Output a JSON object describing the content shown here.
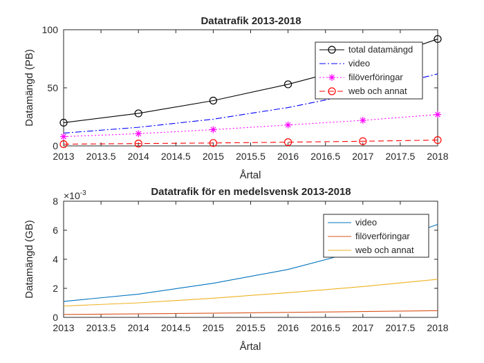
{
  "chart_data": [
    {
      "type": "line",
      "title": "Datatrafik 2013-2018",
      "xlabel": "Årtal",
      "ylabel": "Datamängd (PB)",
      "x": [
        2013,
        2014,
        2015,
        2016,
        2017,
        2018
      ],
      "xlim": [
        2013,
        2018
      ],
      "ylim": [
        0,
        100
      ],
      "xticks": [
        "2013",
        "2013.5",
        "2014",
        "2014.5",
        "2015",
        "2015.5",
        "2016",
        "2016.5",
        "2017",
        "2017.5",
        "2018"
      ],
      "yticks": [
        "0",
        "50",
        "100"
      ],
      "legend_position": "top-right",
      "series": [
        {
          "name": "total datamängd",
          "values": [
            20,
            28,
            39,
            53,
            70,
            92
          ],
          "color": "#000000",
          "line": "solid",
          "marker": "circle"
        },
        {
          "name": "video",
          "values": [
            11,
            16,
            23,
            33,
            46,
            62
          ],
          "color": "#0000ff",
          "line": "dashdot",
          "marker": "none"
        },
        {
          "name": "filöverföringar",
          "values": [
            8,
            10.5,
            14,
            18,
            22,
            27
          ],
          "color": "#ff00ff",
          "line": "dotted",
          "marker": "asterisk"
        },
        {
          "name": "web och annat",
          "values": [
            1.5,
            2,
            2.5,
            3.2,
            4,
            5
          ],
          "color": "#ff0000",
          "line": "dashed",
          "marker": "circle"
        }
      ]
    },
    {
      "type": "line",
      "title": "Datatrafik för en medelsvensk 2013-2018",
      "xlabel": "Årtal",
      "ylabel": "Datamängd (GB)",
      "exponent": "×10",
      "exponent_power": "-3",
      "x": [
        2013,
        2014,
        2015,
        2016,
        2017,
        2018
      ],
      "xlim": [
        2013,
        2018
      ],
      "ylim": [
        0,
        8
      ],
      "xticks": [
        "2013",
        "2013.5",
        "2014",
        "2014.5",
        "2015",
        "2015.5",
        "2016",
        "2016.5",
        "2017",
        "2017.5",
        "2018"
      ],
      "yticks": [
        "0",
        "2",
        "4",
        "6",
        "8"
      ],
      "legend_position": "top-right",
      "series": [
        {
          "name": "video",
          "values": [
            1.1,
            1.6,
            2.35,
            3.3,
            4.65,
            6.4
          ],
          "color": "#0072bd",
          "line": "solid",
          "marker": "none"
        },
        {
          "name": "filöverföringar",
          "values": [
            0.2,
            0.24,
            0.29,
            0.34,
            0.4,
            0.46
          ],
          "color": "#d95319",
          "line": "solid",
          "marker": "none"
        },
        {
          "name": "web och annat",
          "values": [
            0.78,
            1.0,
            1.32,
            1.7,
            2.12,
            2.62
          ],
          "color": "#edb120",
          "line": "solid",
          "marker": "none"
        }
      ]
    }
  ]
}
